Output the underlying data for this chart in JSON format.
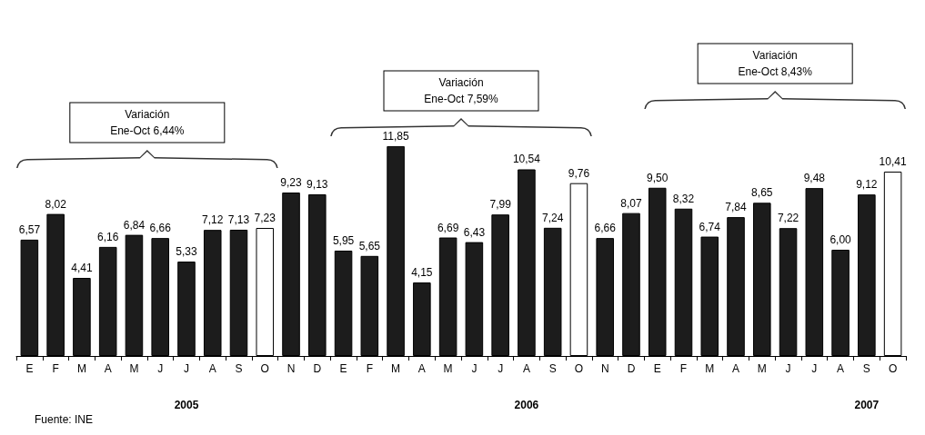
{
  "chart_data": {
    "type": "bar",
    "categories": [
      "E",
      "F",
      "M",
      "A",
      "M",
      "J",
      "J",
      "A",
      "S",
      "O",
      "N",
      "D",
      "E",
      "F",
      "M",
      "A",
      "M",
      "J",
      "J",
      "A",
      "S",
      "O",
      "N",
      "D",
      "E",
      "F",
      "M",
      "A",
      "M",
      "J",
      "J",
      "A",
      "S",
      "O"
    ],
    "values": [
      6.57,
      8.02,
      4.41,
      6.16,
      6.84,
      6.66,
      5.33,
      7.12,
      7.13,
      7.23,
      9.23,
      9.13,
      5.95,
      5.65,
      11.85,
      4.15,
      6.69,
      6.43,
      7.99,
      10.54,
      7.24,
      9.76,
      6.66,
      8.07,
      9.5,
      8.32,
      6.74,
      7.84,
      8.65,
      7.22,
      9.48,
      6.0,
      9.12,
      10.41
    ],
    "value_labels": [
      "6,57",
      "8,02",
      "4,41",
      "6,16",
      "6,84",
      "6,66",
      "5,33",
      "7,12",
      "7,13",
      "7,23",
      "9,23",
      "9,13",
      "5,95",
      "5,65",
      "11,85",
      "4,15",
      "6,69",
      "6,43",
      "7,99",
      "10,54",
      "7,24",
      "9,76",
      "6,66",
      "8,07",
      "9,50",
      "8,32",
      "6,74",
      "7,84",
      "8,65",
      "7,22",
      "9,48",
      "6,00",
      "9,12",
      "10,41"
    ],
    "colors": [
      "#1c1c1c",
      "#1c1c1c",
      "#1c1c1c",
      "#1c1c1c",
      "#1c1c1c",
      "#1c1c1c",
      "#1c1c1c",
      "#1c1c1c",
      "#1c1c1c",
      "#ffffff",
      "#1c1c1c",
      "#1c1c1c",
      "#1c1c1c",
      "#1c1c1c",
      "#1c1c1c",
      "#1c1c1c",
      "#1c1c1c",
      "#1c1c1c",
      "#1c1c1c",
      "#1c1c1c",
      "#1c1c1c",
      "#ffffff",
      "#1c1c1c",
      "#1c1c1c",
      "#1c1c1c",
      "#1c1c1c",
      "#1c1c1c",
      "#1c1c1c",
      "#1c1c1c",
      "#1c1c1c",
      "#1c1c1c",
      "#1c1c1c",
      "#1c1c1c",
      "#ffffff"
    ],
    "annotations": [
      "Variación\nEne-Oct 6,44%",
      "Variación\nEne-Oct 7,59%",
      "Variación\nEne-Oct 8,43%",
      "2005",
      "2006",
      "2007",
      "Fuente: INE"
    ]
  }
}
